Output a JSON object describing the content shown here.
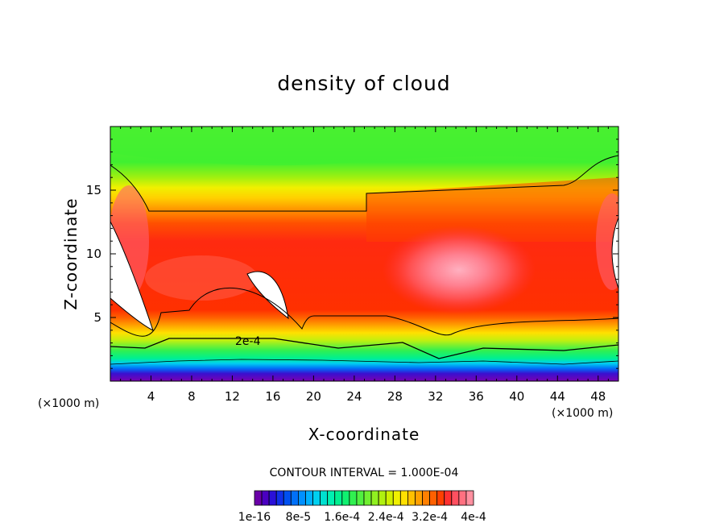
{
  "chart_data": {
    "type": "heatmap",
    "title": "density of cloud",
    "xlabel": "X-coordinate",
    "ylabel": "Z-coordinate",
    "x_unit": "(×1000 m)",
    "z_unit": "(×1000 m)",
    "xlim": [
      0,
      50
    ],
    "ylim": [
      0,
      20
    ],
    "x_ticks": [
      4,
      8,
      12,
      16,
      20,
      24,
      28,
      32,
      36,
      40,
      44,
      48
    ],
    "y_ticks": [
      5,
      10,
      15
    ],
    "contour_interval_text": "CONTOUR INTERVAL = 1.000E-04",
    "contour_label": "2e-4",
    "colorbar": {
      "colors": [
        "#6a00a8",
        "#4a00c0",
        "#2a10d8",
        "#1030e8",
        "#0050f0",
        "#0070f8",
        "#0090ff",
        "#00b0ff",
        "#00d0f0",
        "#00e0d0",
        "#00f0b0",
        "#00f090",
        "#10f070",
        "#30f050",
        "#50f040",
        "#70f030",
        "#90f020",
        "#b0f010",
        "#d0f000",
        "#f0f000",
        "#ffe000",
        "#ffc000",
        "#ffa000",
        "#ff8000",
        "#ff6000",
        "#ff4000",
        "#ff3030",
        "#ff5060",
        "#ff7080",
        "#ff90a0"
      ],
      "tick_labels": [
        "1e-16",
        "8e-5",
        "1.6e-4",
        "2.4e-4",
        "3.2e-4",
        "4e-4"
      ]
    }
  }
}
